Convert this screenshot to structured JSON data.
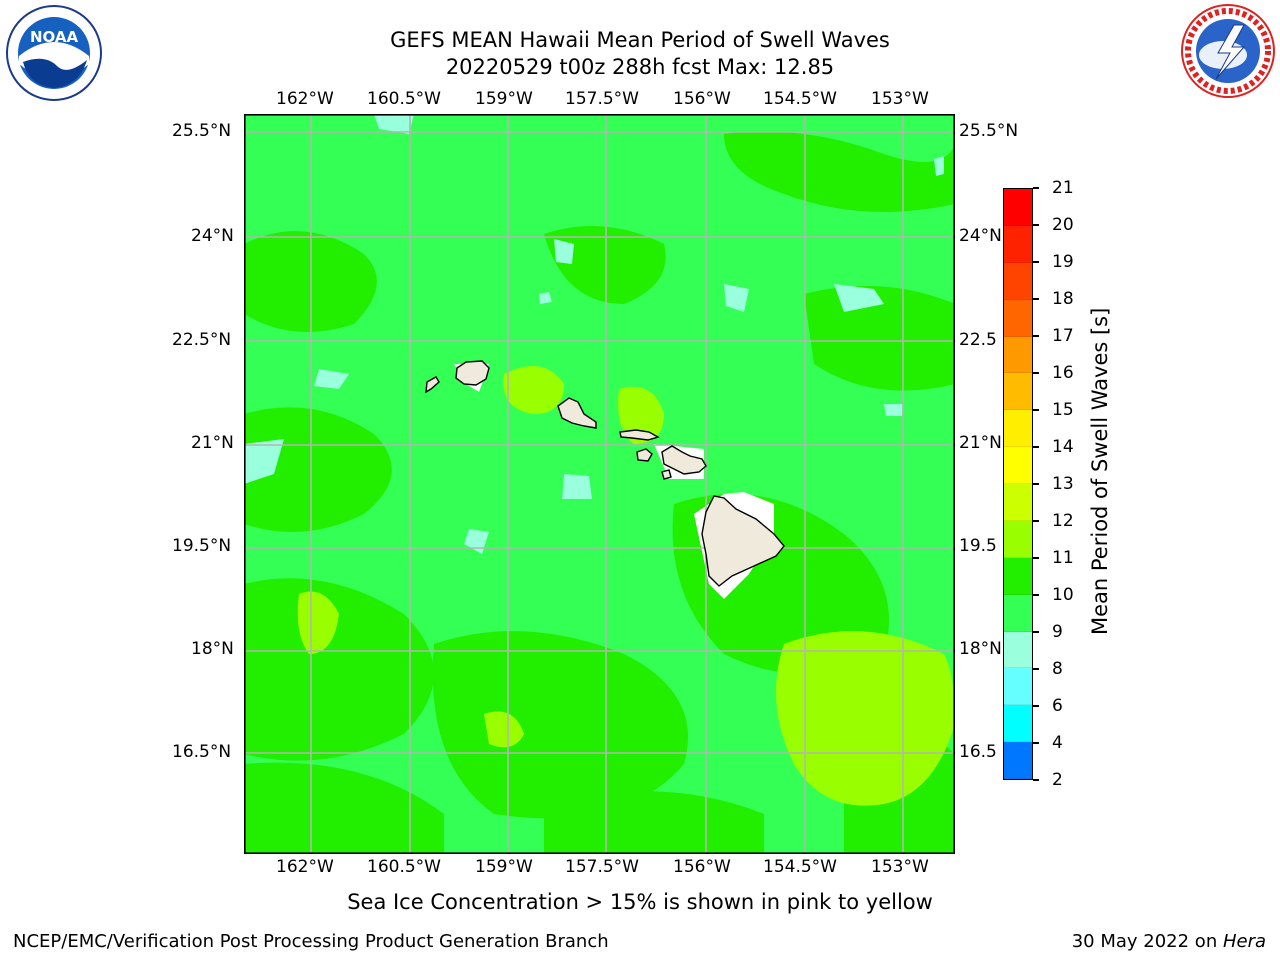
{
  "header": {
    "title_line1": "GEFS MEAN Hawaii Mean Period of Swell Waves",
    "title_line2": "20220529 t00z 288h fcst   Max: 12.85"
  },
  "logos": {
    "left": "noaa-logo",
    "right": "national-weather-service-logo"
  },
  "map": {
    "lon_ticks": [
      "162°W",
      "160.5°W",
      "159°W",
      "157.5°W",
      "156°W",
      "154.5°W",
      "153°W"
    ],
    "lat_ticks": [
      "25.5°N",
      "24°N",
      "22.5°N",
      "21°N",
      "19.5°N",
      "18°N",
      "16.5°N"
    ],
    "lat_ticks_right": [
      "25.5°N",
      "24°N",
      "22.5",
      "21°N",
      "19.5",
      "18°N",
      "16.5"
    ],
    "background_color": "#33ff55",
    "land_color": "#efeadc"
  },
  "colorbar": {
    "label": "Mean Period of Swell Waves [s]",
    "ticks": [
      "21",
      "20",
      "19",
      "18",
      "17",
      "16",
      "15",
      "14",
      "13",
      "12",
      "11",
      "10",
      "9",
      "8",
      "6",
      "4",
      "2"
    ],
    "colors": [
      "#ff0000",
      "#ff2200",
      "#ff4400",
      "#ff6600",
      "#ff9900",
      "#ffbb00",
      "#ffee00",
      "#ffff00",
      "#ccff00",
      "#99ff00",
      "#22ee00",
      "#33ff55",
      "#99ffdd",
      "#66ffff",
      "#00ffff",
      "#0077ff",
      "#0000ff"
    ]
  },
  "caption": "Sea Ice Concentration > 15% is shown in pink to yellow",
  "footer": {
    "left": "NCEP/EMC/Verification Post Processing Product Generation Branch",
    "right_prefix": "30 May 2022 on ",
    "right_host": "Hera"
  }
}
